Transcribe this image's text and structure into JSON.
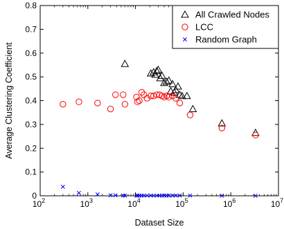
{
  "chart_data": {
    "type": "scatter",
    "title": "",
    "xlabel": "Dataset Size",
    "ylabel": "Average Clustering Coefficient",
    "xscale": "log",
    "xlim": [
      100,
      10000000
    ],
    "ylim": [
      0,
      0.8
    ],
    "grid": false,
    "legend_position": "top-right",
    "x_ticks": [
      {
        "base": "10",
        "exp": "2"
      },
      {
        "base": "10",
        "exp": "3"
      },
      {
        "base": "10",
        "exp": "4"
      },
      {
        "base": "10",
        "exp": "5"
      },
      {
        "base": "10",
        "exp": "6"
      },
      {
        "base": "10",
        "exp": "7"
      }
    ],
    "y_ticks": [
      "0",
      "0.1",
      "0.2",
      "0.3",
      "0.4",
      "0.5",
      "0.6",
      "0.7",
      "0.8"
    ],
    "series": [
      {
        "name": "All Crawled Nodes",
        "marker": "triangle",
        "color": "#000000",
        "points": [
          [
            6000,
            0.555
          ],
          [
            21000,
            0.515
          ],
          [
            24000,
            0.52
          ],
          [
            26000,
            0.51
          ],
          [
            28000,
            0.525
          ],
          [
            30000,
            0.53
          ],
          [
            33000,
            0.495
          ],
          [
            36000,
            0.505
          ],
          [
            40000,
            0.475
          ],
          [
            45000,
            0.48
          ],
          [
            50000,
            0.485
          ],
          [
            55000,
            0.44
          ],
          [
            60000,
            0.47
          ],
          [
            65000,
            0.435
          ],
          [
            70000,
            0.445
          ],
          [
            78000,
            0.46
          ],
          [
            85000,
            0.425
          ],
          [
            95000,
            0.42
          ],
          [
            120000,
            0.42
          ],
          [
            160000,
            0.365
          ],
          [
            650000,
            0.305
          ],
          [
            3300000,
            0.265
          ]
        ]
      },
      {
        "name": "LCC",
        "marker": "circle",
        "color": "#ff0000",
        "points": [
          [
            300,
            0.385
          ],
          [
            650,
            0.395
          ],
          [
            1600,
            0.39
          ],
          [
            3000,
            0.365
          ],
          [
            3800,
            0.425
          ],
          [
            5500,
            0.425
          ],
          [
            6000,
            0.385
          ],
          [
            10500,
            0.415
          ],
          [
            11000,
            0.395
          ],
          [
            12000,
            0.4
          ],
          [
            13500,
            0.435
          ],
          [
            15000,
            0.425
          ],
          [
            17500,
            0.41
          ],
          [
            21000,
            0.42
          ],
          [
            24000,
            0.42
          ],
          [
            28000,
            0.425
          ],
          [
            32000,
            0.425
          ],
          [
            36000,
            0.42
          ],
          [
            40000,
            0.415
          ],
          [
            45000,
            0.42
          ],
          [
            50000,
            0.415
          ],
          [
            60000,
            0.42
          ],
          [
            70000,
            0.41
          ],
          [
            85000,
            0.39
          ],
          [
            140000,
            0.34
          ],
          [
            650000,
            0.285
          ],
          [
            3300000,
            0.255
          ]
        ]
      },
      {
        "name": "Random Graph",
        "marker": "x",
        "color": "#0000ff",
        "points": [
          [
            300,
            0.038
          ],
          [
            650,
            0.012
          ],
          [
            1600,
            0.006
          ],
          [
            3000,
            0.002
          ],
          [
            3800,
            0.002
          ],
          [
            5500,
            0.001
          ],
          [
            6000,
            0.001
          ],
          [
            10500,
            0.001
          ],
          [
            11000,
            0.001
          ],
          [
            12000,
            0.001
          ],
          [
            13500,
            0.001
          ],
          [
            15000,
            0.001
          ],
          [
            17500,
            0.001
          ],
          [
            21000,
            0.001
          ],
          [
            24000,
            0.001
          ],
          [
            28000,
            0.001
          ],
          [
            32000,
            0.001
          ],
          [
            36000,
            0.001
          ],
          [
            40000,
            0.001
          ],
          [
            45000,
            0.001
          ],
          [
            50000,
            0.001
          ],
          [
            60000,
            0.001
          ],
          [
            70000,
            0.001
          ],
          [
            85000,
            0.001
          ],
          [
            140000,
            0.001
          ],
          [
            650000,
            0.0005
          ],
          [
            3300000,
            0.0002
          ]
        ]
      }
    ]
  }
}
